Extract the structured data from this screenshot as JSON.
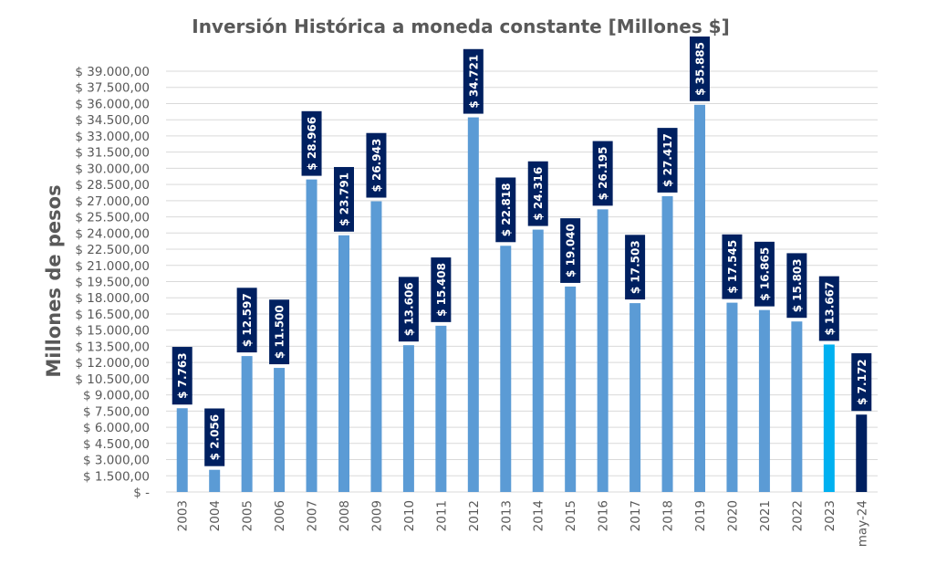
{
  "chart_data": {
    "type": "bar",
    "title": "Inversión Histórica a moneda constante [Millones $]",
    "xlabel": "",
    "ylabel": "Millones de pesos",
    "ylim": [
      0,
      39000
    ],
    "grid": true,
    "legend": "none",
    "categories": [
      "2003",
      "2004",
      "2005",
      "2006",
      "2007",
      "2008",
      "2009",
      "2010",
      "2011",
      "2012",
      "2013",
      "2014",
      "2015",
      "2016",
      "2017",
      "2018",
      "2019",
      "2020",
      "2021",
      "2022",
      "2023",
      "may-24"
    ],
    "values": [
      7763,
      2056,
      12597,
      11500,
      28966,
      23791,
      26943,
      13606,
      15408,
      34721,
      22818,
      24316,
      19040,
      26195,
      17503,
      27417,
      35885,
      17545,
      16865,
      15803,
      13667,
      7172
    ],
    "data_labels": [
      "$ 7.763",
      "$ 2.056",
      "$ 12.597",
      "$ 11.500",
      "$ 28.966",
      "$ 23.791",
      "$ 26.943",
      "$ 13.606",
      "$ 15.408",
      "$ 34.721",
      "$ 22.818",
      "$ 24.316",
      "$ 19.040",
      "$ 26.195",
      "$ 17.503",
      "$ 27.417",
      "$ 35.885",
      "$ 17.545",
      "$ 16.865",
      "$ 15.803",
      "$ 13.667",
      "$ 7.172"
    ],
    "bar_colors": [
      "#5b9bd5",
      "#5b9bd5",
      "#5b9bd5",
      "#5b9bd5",
      "#5b9bd5",
      "#5b9bd5",
      "#5b9bd5",
      "#5b9bd5",
      "#5b9bd5",
      "#5b9bd5",
      "#5b9bd5",
      "#5b9bd5",
      "#5b9bd5",
      "#5b9bd5",
      "#5b9bd5",
      "#5b9bd5",
      "#5b9bd5",
      "#5b9bd5",
      "#5b9bd5",
      "#5b9bd5",
      "#00b0f0",
      "#002060"
    ],
    "label_box_color": "#002060",
    "yticks": [
      0,
      1500,
      3000,
      4500,
      6000,
      7500,
      9000,
      10500,
      12000,
      13500,
      15000,
      16500,
      18000,
      19500,
      21000,
      22500,
      24000,
      25500,
      27000,
      28500,
      30000,
      31500,
      33000,
      34500,
      36000,
      37500,
      39000
    ],
    "ytick_labels": [
      "$ -",
      "$ 1.500,00",
      "$ 3.000,00",
      "$ 4.500,00",
      "$ 6.000,00",
      "$ 7.500,00",
      "$ 9.000,00",
      "$ 10.500,00",
      "$ 12.000,00",
      "$ 13.500,00",
      "$ 15.000,00",
      "$ 16.500,00",
      "$ 18.000,00",
      "$ 19.500,00",
      "$ 21.000,00",
      "$ 22.500,00",
      "$ 24.000,00",
      "$ 25.500,00",
      "$ 27.000,00",
      "$ 28.500,00",
      "$ 30.000,00",
      "$ 31.500,00",
      "$ 33.000,00",
      "$ 34.500,00",
      "$ 36.000,00",
      "$ 37.500,00",
      "$ 39.000,00"
    ]
  }
}
